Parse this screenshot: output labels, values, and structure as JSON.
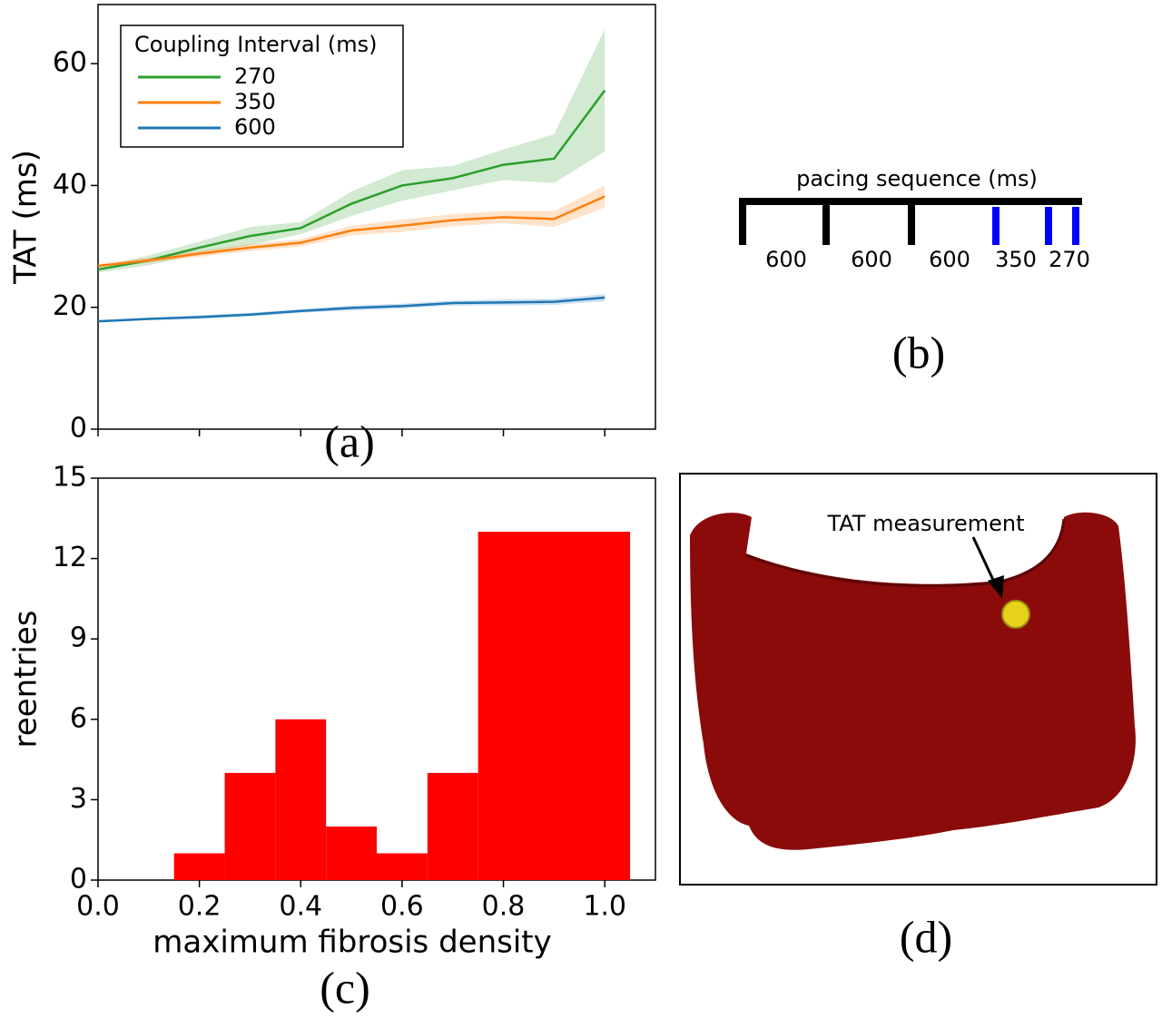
{
  "chart_data": [
    {
      "type": "line",
      "ylabel": "TAT (ms)",
      "legend_title": "Coupling Interval (ms)",
      "legend": "upper left",
      "x": [
        0.0,
        0.1,
        0.2,
        0.3,
        0.4,
        0.5,
        0.6,
        0.7,
        0.8,
        0.9,
        1.0
      ],
      "xlim": [
        0,
        1.1
      ],
      "xticks": [
        0,
        0.2,
        0.4,
        0.6,
        0.8,
        1.0
      ],
      "ylim": [
        0,
        69.7
      ],
      "yticks": [
        0,
        20,
        40,
        60
      ],
      "series": [
        {
          "name": "270",
          "color": "#2ca02c",
          "values": [
            26.2,
            27.7,
            29.8,
            31.7,
            33.0,
            37.0,
            40.0,
            41.2,
            43.4,
            44.4,
            55.6
          ],
          "error": [
            0.5,
            0.8,
            1.0,
            1.5,
            1.0,
            2.0,
            2.5,
            2.0,
            2.5,
            4.0,
            10.0
          ]
        },
        {
          "name": "350",
          "color": "#ff7f0e",
          "values": [
            26.8,
            27.7,
            28.8,
            29.8,
            30.6,
            32.6,
            33.4,
            34.3,
            34.8,
            34.5,
            38.2
          ],
          "error": [
            0.3,
            0.4,
            0.5,
            0.6,
            0.6,
            0.8,
            1.0,
            1.0,
            1.0,
            1.3,
            1.8
          ]
        },
        {
          "name": "600",
          "color": "#1f77b4",
          "values": [
            17.7,
            18.1,
            18.4,
            18.8,
            19.4,
            19.9,
            20.2,
            20.7,
            20.8,
            20.9,
            21.6
          ],
          "error": [
            0.2,
            0.2,
            0.3,
            0.3,
            0.3,
            0.4,
            0.4,
            0.4,
            0.5,
            0.5,
            0.6
          ]
        }
      ]
    },
    {
      "type": "histogram",
      "xlabel": "maximum fibrosis density",
      "ylabel": "reentries",
      "color": "#ff0000",
      "bins": [
        0.15,
        0.25,
        0.35,
        0.45,
        0.55,
        0.65,
        0.75,
        1.05
      ],
      "values": [
        1,
        4,
        6,
        2,
        1,
        4,
        13
      ],
      "xlim": [
        0,
        1.1
      ],
      "xticks": [
        {
          "value": 0,
          "label": "0.0"
        },
        {
          "value": 0.2,
          "label": "0.2"
        },
        {
          "value": 0.4,
          "label": "0.4"
        },
        {
          "value": 0.6,
          "label": "0.6"
        },
        {
          "value": 0.8,
          "label": "0.8"
        },
        {
          "value": 1,
          "label": "1.0"
        }
      ],
      "ylim": [
        0,
        15
      ],
      "yticks": [
        0,
        3,
        6,
        9,
        12,
        15
      ]
    }
  ],
  "pacing_diagram": {
    "title": "pacing sequence (ms)",
    "intervals": [
      "600",
      "600",
      "600",
      "350",
      "270"
    ]
  },
  "heart_image": {
    "annotation": "TAT measurement"
  },
  "panel_labels": [
    "(a)",
    "(b)",
    "(c)",
    "(d)"
  ]
}
